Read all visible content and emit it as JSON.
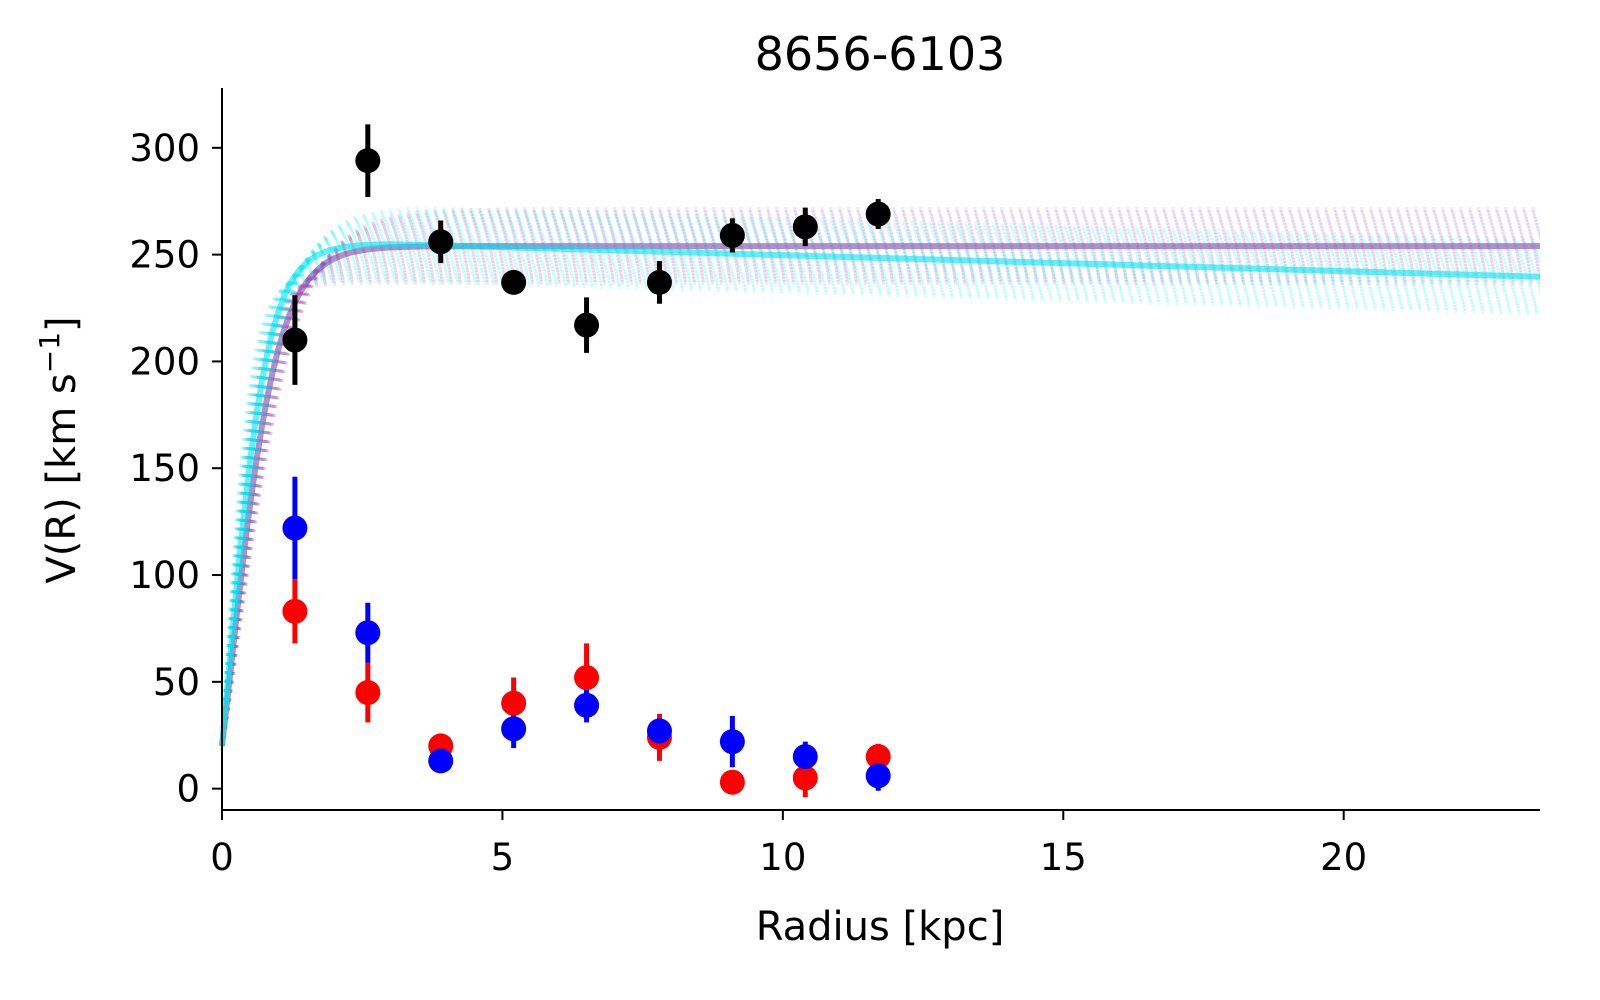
{
  "chart_data": {
    "type": "scatter",
    "title": "8656-6103",
    "xlabel": "Radius [kpc]",
    "ylabel": "V(R) [km s^-1]",
    "ylabel_parts": {
      "prefix": "V(R) [km s",
      "exponent": "−1",
      "suffix": "]"
    },
    "xlim": [
      0,
      23.5
    ],
    "ylim": [
      -10,
      328
    ],
    "xticks": [
      0,
      5,
      10,
      15,
      20
    ],
    "yticks": [
      0,
      50,
      100,
      150,
      200,
      250,
      300
    ],
    "grid": false,
    "legend": "none",
    "series": [
      {
        "color": "#000000",
        "x": [
          1.3,
          2.6,
          3.9,
          5.2,
          6.5,
          7.8,
          9.1,
          10.4,
          11.7
        ],
        "y": [
          210,
          294,
          256,
          237,
          217,
          237,
          259,
          263,
          269
        ],
        "yerr": [
          21,
          17,
          10,
          3,
          13,
          10,
          8,
          9,
          7
        ]
      },
      {
        "color": "#ff0000",
        "x": [
          1.3,
          2.6,
          3.9,
          5.2,
          6.5,
          7.8,
          9.1,
          10.4,
          11.7
        ],
        "y": [
          83,
          45,
          20,
          40,
          52,
          24,
          3,
          5,
          15
        ],
        "yerr": [
          15,
          14,
          3,
          12,
          16,
          11,
          4,
          9,
          6
        ]
      },
      {
        "color": "#0000ff",
        "x": [
          1.3,
          2.6,
          3.9,
          5.2,
          6.5,
          7.8,
          9.1,
          10.4,
          11.7
        ],
        "y": [
          122,
          73,
          13,
          28,
          39,
          27,
          22,
          15,
          6
        ],
        "yerr": [
          24,
          14,
          4,
          9,
          8,
          6,
          12,
          7,
          7
        ]
      }
    ],
    "model_curves": [
      {
        "color": "#8a3fa8",
        "vmax": 254,
        "rt": 0.9,
        "decline": 0
      },
      {
        "color": "#00e5ee",
        "vmax": 255,
        "rt": 0.75,
        "decline": 0.75
      }
    ]
  }
}
